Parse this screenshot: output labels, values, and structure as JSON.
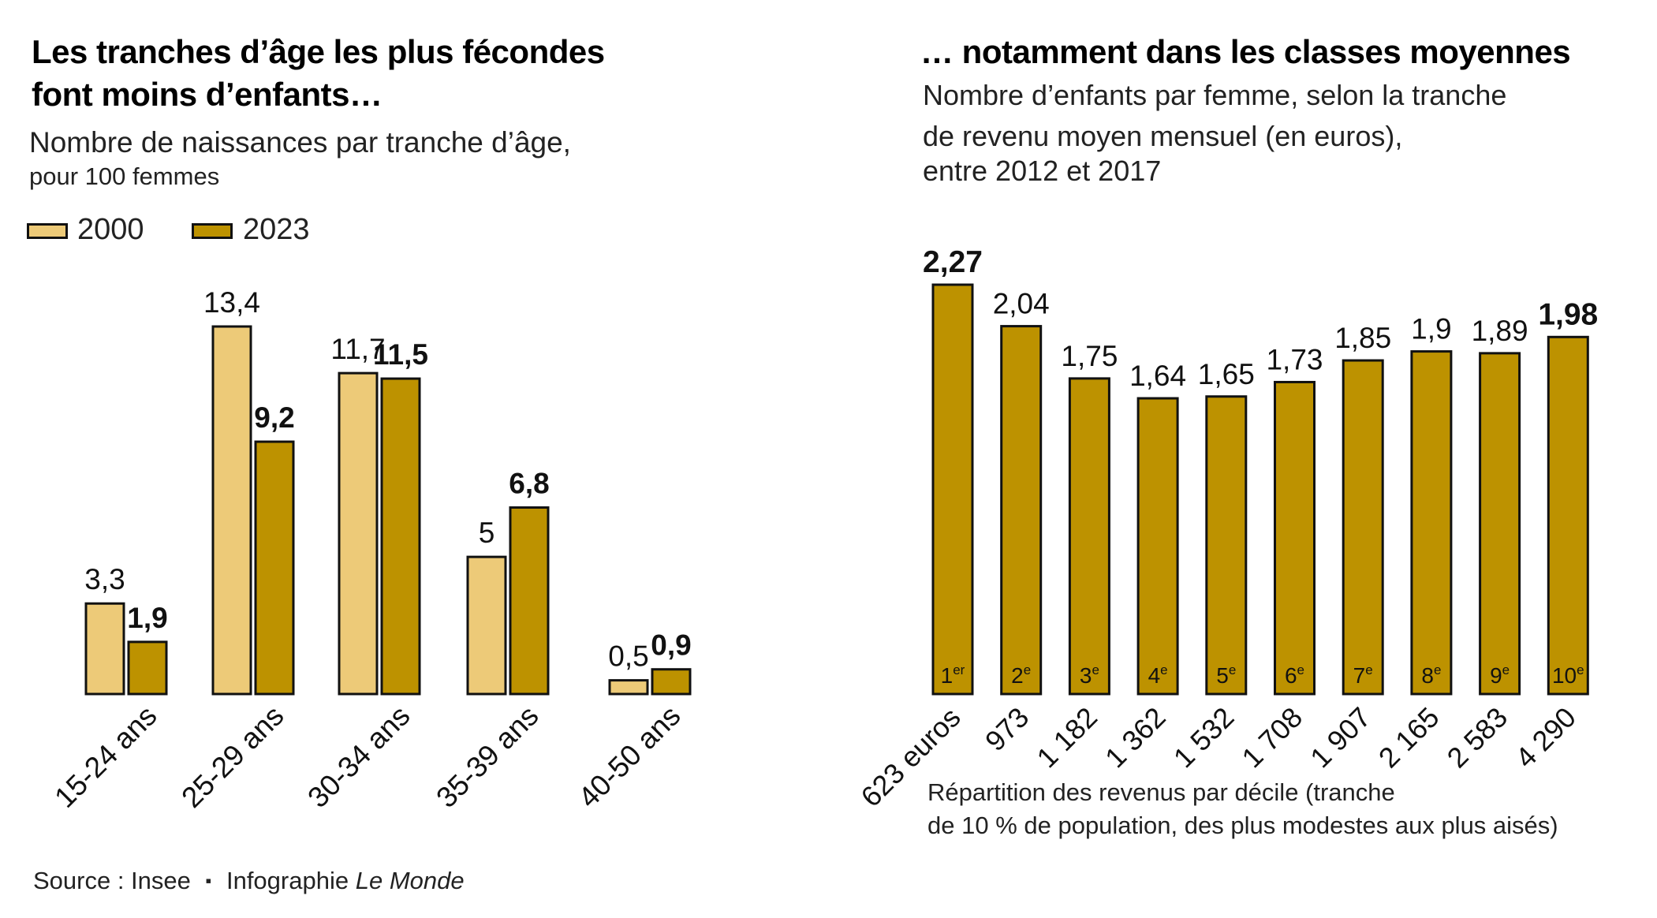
{
  "colors": {
    "light": "#EDCA78",
    "dark": "#BD9200",
    "stroke": "#111111"
  },
  "left": {
    "title_line1": "Les tranches d’âge les plus fécondes",
    "title_line2": "font moins d’enfants…",
    "subtitle_line1": "Nombre de naissances par tranche d’âge,",
    "subtitle_line2": "pour 100 femmes",
    "legend": [
      "2000",
      "2023"
    ]
  },
  "right": {
    "title": "… notamment dans les classes moyennes",
    "subtitle_line1": "Nombre d’enfants par femme, selon la tranche",
    "subtitle_line2": "de revenu moyen mensuel (en euros),",
    "subtitle_line3": "entre 2012 et 2017",
    "note_line1": "Répartition des revenus par décile (tranche",
    "note_line2": "de 10 % de population, des plus modestes aux plus aisés)"
  },
  "source": {
    "prefix": "Source : Insee",
    "separator": "▪",
    "credit": "Infographie",
    "credit_italic": "Le Monde"
  },
  "chart_data": [
    {
      "type": "bar",
      "categories": [
        "15-24 ans",
        "25-29 ans",
        "30-34 ans",
        "35-39 ans",
        "40-50 ans"
      ],
      "series": [
        {
          "name": "2000",
          "values": [
            3.3,
            13.4,
            11.7,
            5,
            0.5
          ],
          "labels": [
            "3,3",
            "13,4",
            "11,7",
            "5",
            "0,5"
          ]
        },
        {
          "name": "2023",
          "values": [
            1.9,
            9.2,
            11.5,
            6.8,
            0.9
          ],
          "labels": [
            "1,9",
            "9,2",
            "11,5",
            "6,8",
            "0,9"
          ]
        }
      ],
      "title": "Les tranches d’âge les plus fécondes font moins d’enfants…",
      "ylim": [
        0,
        13.4
      ],
      "grid": false,
      "legend": "top-left"
    },
    {
      "type": "bar",
      "categories": [
        "623 euros",
        "973",
        "1 182",
        "1 362",
        "1 532",
        "1 708",
        "1 907",
        "2 165",
        "2 583",
        "4 290"
      ],
      "deciles": [
        {
          "num": "1",
          "sup": "er"
        },
        {
          "num": "2",
          "sup": "e"
        },
        {
          "num": "3",
          "sup": "e"
        },
        {
          "num": "4",
          "sup": "e"
        },
        {
          "num": "5",
          "sup": "e"
        },
        {
          "num": "6",
          "sup": "e"
        },
        {
          "num": "7",
          "sup": "e"
        },
        {
          "num": "8",
          "sup": "e"
        },
        {
          "num": "9",
          "sup": "e"
        },
        {
          "num": "10",
          "sup": "e"
        }
      ],
      "values": [
        2.27,
        2.04,
        1.75,
        1.64,
        1.65,
        1.73,
        1.85,
        1.9,
        1.89,
        1.98
      ],
      "labels": [
        "2,27",
        "2,04",
        "1,75",
        "1,64",
        "1,65",
        "1,73",
        "1,85",
        "1,9",
        "1,89",
        "1,98"
      ],
      "bold_labels": [
        0,
        9
      ],
      "title": "… notamment dans les classes moyennes",
      "ylim": [
        0,
        2.27
      ],
      "grid": false
    }
  ]
}
